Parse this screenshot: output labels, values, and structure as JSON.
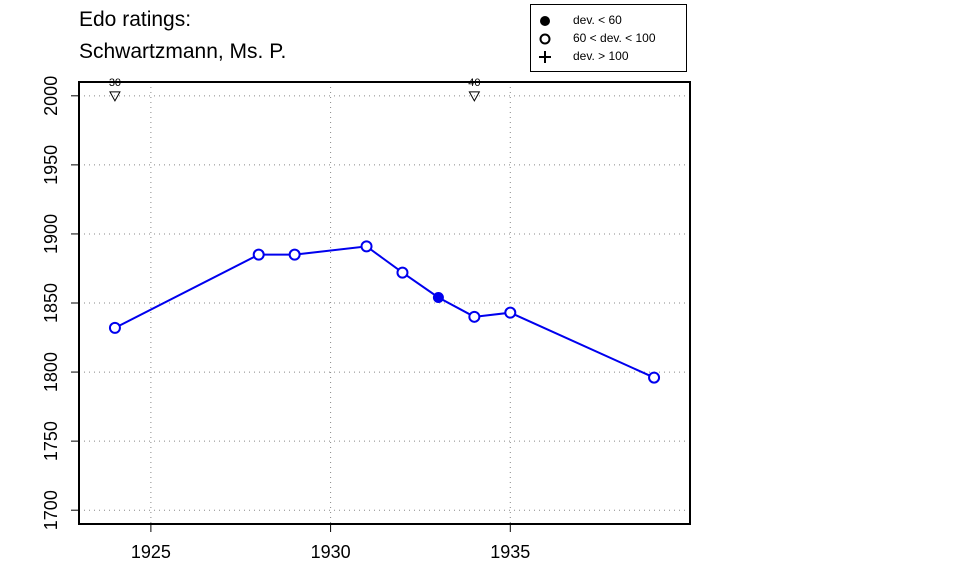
{
  "title": {
    "line1": "Edo ratings:",
    "line2": "Schwartzmann, Ms. P."
  },
  "legend": [
    {
      "symbol": "filled-circle",
      "label": "dev. < 60"
    },
    {
      "symbol": "open-circle",
      "label": "60 < dev. < 100"
    },
    {
      "symbol": "plus",
      "label": "dev. > 100"
    }
  ],
  "chart_data": {
    "type": "line",
    "xlim": [
      1923,
      1940
    ],
    "ylim": [
      1690,
      2010
    ],
    "x_ticks": [
      1925,
      1930,
      1935
    ],
    "y_ticks": [
      1700,
      1750,
      1800,
      1850,
      1900,
      1950,
      2000
    ],
    "grid": true,
    "line_color": "#0000ee",
    "legend_position": "top-right",
    "series": [
      {
        "points": [
          {
            "x": 1924,
            "y": 1832,
            "marker": "open"
          },
          {
            "x": 1928,
            "y": 1885,
            "marker": "open"
          },
          {
            "x": 1929,
            "y": 1885,
            "marker": "open"
          },
          {
            "x": 1931,
            "y": 1891,
            "marker": "open"
          },
          {
            "x": 1932,
            "y": 1872,
            "marker": "open"
          },
          {
            "x": 1933,
            "y": 1854,
            "marker": "filled"
          },
          {
            "x": 1934,
            "y": 1840,
            "marker": "open"
          },
          {
            "x": 1935,
            "y": 1843,
            "marker": "open"
          },
          {
            "x": 1939,
            "y": 1796,
            "marker": "open"
          }
        ]
      }
    ],
    "annotations": [
      {
        "x": 1924,
        "label": "30",
        "marker": "down-triangle"
      },
      {
        "x": 1934,
        "label": "40",
        "marker": "down-triangle"
      }
    ]
  }
}
